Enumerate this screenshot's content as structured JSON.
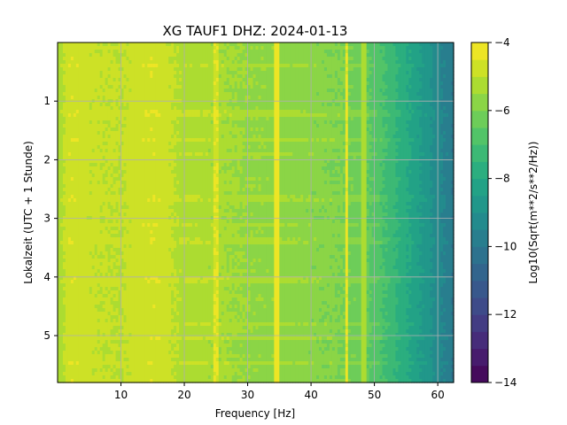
{
  "chart_data": {
    "type": "heatmap",
    "title": "XG TAUF1  DHZ: 2024-01-13",
    "xlabel": "Frequency [Hz]",
    "ylabel": "Lokalzeit (UTC + 1 Stunde)",
    "colorbar_label": "Log10(Sqrt(m**2/s**2/Hz))",
    "xlim": [
      0,
      62.5
    ],
    "ylim": [
      5.8,
      0
    ],
    "x_ticks": [
      10,
      20,
      30,
      40,
      50,
      60
    ],
    "x_tick_labels": [
      "10",
      "20",
      "30",
      "40",
      "50",
      "60"
    ],
    "y_ticks": [
      1,
      2,
      3,
      4,
      5
    ],
    "y_tick_labels": [
      "1",
      "2",
      "3",
      "4",
      "5"
    ],
    "color_range": [
      -14,
      -4
    ],
    "colorbar_ticks": [
      -4,
      -6,
      -8,
      -10,
      -12,
      -14
    ],
    "colorbar_tick_labels": [
      "−4",
      "−6",
      "−8",
      "−10",
      "−12",
      "−14"
    ],
    "colormap": "viridis",
    "grid": true,
    "profile": {
      "frequency_hz": [
        0,
        2,
        5,
        10,
        15,
        20,
        25,
        30,
        35,
        40,
        45,
        48,
        50,
        52,
        55,
        58,
        60,
        62.5
      ],
      "log10_amplitude": [
        -5.4,
        -4.6,
        -4.9,
        -5.0,
        -4.6,
        -5.2,
        -5.4,
        -5.55,
        -5.7,
        -5.85,
        -6.0,
        -6.25,
        -6.7,
        -7.1,
        -7.9,
        -8.7,
        -9.3,
        -10.0
      ]
    },
    "peaks": [
      {
        "frequency_hz": 25,
        "log10_amplitude": -4.5
      },
      {
        "frequency_hz": 34.6,
        "log10_amplitude": -4.3
      },
      {
        "frequency_hz": 45.6,
        "log10_amplitude": -4.4
      },
      {
        "frequency_hz": 48.3,
        "log10_amplitude": -5.2
      }
    ],
    "bright_rows_hours": [
      0.4,
      1.2,
      1.65,
      1.9,
      2.65,
      3.1,
      3.38,
      4.05,
      4.8,
      5.05,
      5.45
    ]
  }
}
